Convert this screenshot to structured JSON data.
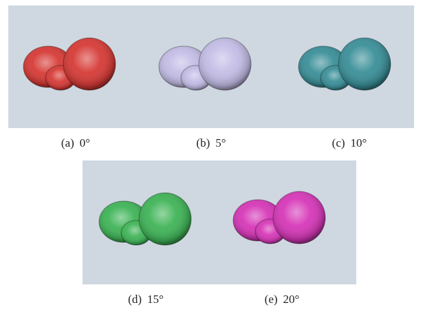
{
  "panels": [
    {
      "label": "(a)",
      "angle": "0°",
      "color": "#d63a36"
    },
    {
      "label": "(b)",
      "angle": "5°",
      "color": "#c3bde6"
    },
    {
      "label": "(c)",
      "angle": "10°",
      "color": "#3a8f98"
    },
    {
      "label": "(d)",
      "angle": "15°",
      "color": "#3fb457"
    },
    {
      "label": "(e)",
      "angle": "20°",
      "color": "#d637b8"
    }
  ]
}
